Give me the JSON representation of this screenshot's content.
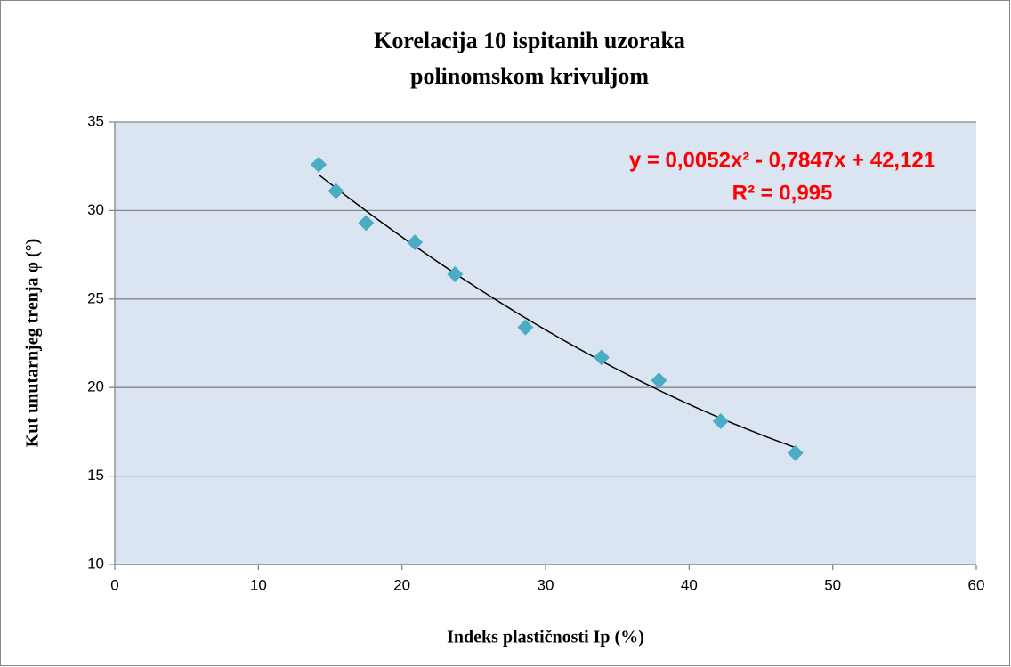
{
  "chart_data": {
    "type": "scatter",
    "title": [
      "Korelacija 10 ispitanih uzoraka",
      "polinomskom krivuljom"
    ],
    "x_label": "Indeks plastičnosti Ip (%)",
    "y_label": "Kut unutarnjeg trenja φ (°)",
    "x": [
      14.2,
      15.4,
      17.5,
      20.9,
      23.7,
      28.6,
      33.9,
      37.9,
      42.2,
      47.4
    ],
    "values": [
      32.6,
      31.1,
      29.3,
      28.2,
      26.4,
      23.4,
      21.7,
      20.4,
      18.1,
      16.3
    ],
    "color": "#4bacc6",
    "xlim": [
      0,
      60
    ],
    "xticks": [
      0,
      10,
      20,
      30,
      40,
      50,
      60
    ],
    "ylim": [
      10,
      35
    ],
    "yticks": [
      10,
      15,
      20,
      25,
      30,
      35
    ],
    "grid": true,
    "trendline": {
      "coefficients": [
        0.0052,
        -0.7847,
        42.121
      ],
      "color": "#000000",
      "equation": "y = 0,0052x² - 0,7847x + 42,121",
      "r_squared": "R² = 0,995",
      "label_color": "#ff0000"
    }
  }
}
